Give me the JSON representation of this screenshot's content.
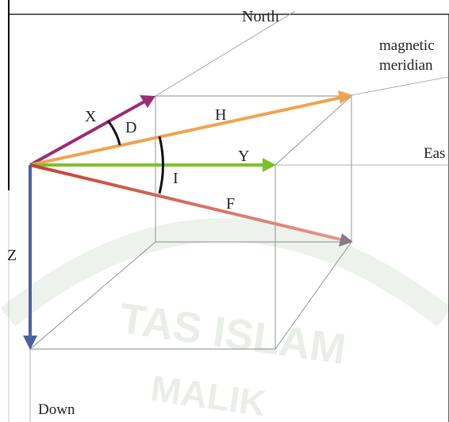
{
  "labels": {
    "north": "North",
    "magnetic_1": "magnetic",
    "magnetic_2": "meridian",
    "east": "Eas",
    "down": "Down",
    "x": "X",
    "d": "D",
    "h": "H",
    "y": "Y",
    "i": "I",
    "f": "F",
    "z": "Z"
  },
  "watermark": {
    "line1": "TAS ISLAM",
    "line2": "MALIK"
  },
  "colors": {
    "x_vector": "#9e2a78",
    "h_vector": "#eea450",
    "y_vector": "#7ec02a",
    "f_vector_start": "#c8402e",
    "f_vector_end": "#e89a90",
    "z_vector": "#4a63a0",
    "box_lines": "#8a8a8a",
    "angle_arcs": "#111111",
    "watermark": "#e9eee9"
  }
}
